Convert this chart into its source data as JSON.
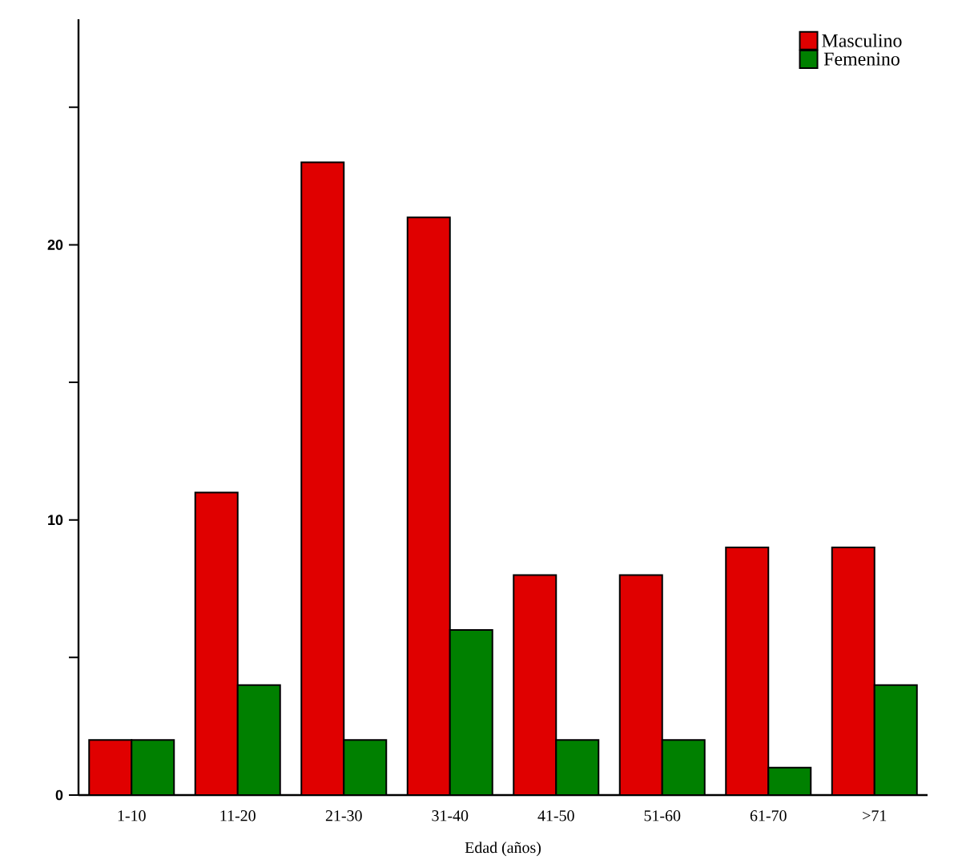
{
  "chart_data": {
    "type": "bar",
    "xlabel": "Edad (años)",
    "categories": [
      "1-10",
      "11-20",
      "21-30",
      "31-40",
      "41-50",
      "51-60",
      "61-70",
      ">71"
    ],
    "series": [
      {
        "name": "Masculino",
        "color": "#e00000",
        "values": [
          2,
          11,
          23,
          21,
          8,
          8,
          9,
          9
        ]
      },
      {
        "name": "Femenino",
        "color": "#008000",
        "values": [
          2,
          4,
          2,
          6,
          2,
          2,
          1,
          4
        ]
      }
    ],
    "ylim": [
      0,
      28.2
    ],
    "yticks": [
      0,
      {
        "value": 5,
        "label": null
      },
      10,
      {
        "value": 15,
        "label": null
      },
      20,
      {
        "value": 25,
        "label": null
      }
    ],
    "legend": "top right",
    "grid": false
  }
}
